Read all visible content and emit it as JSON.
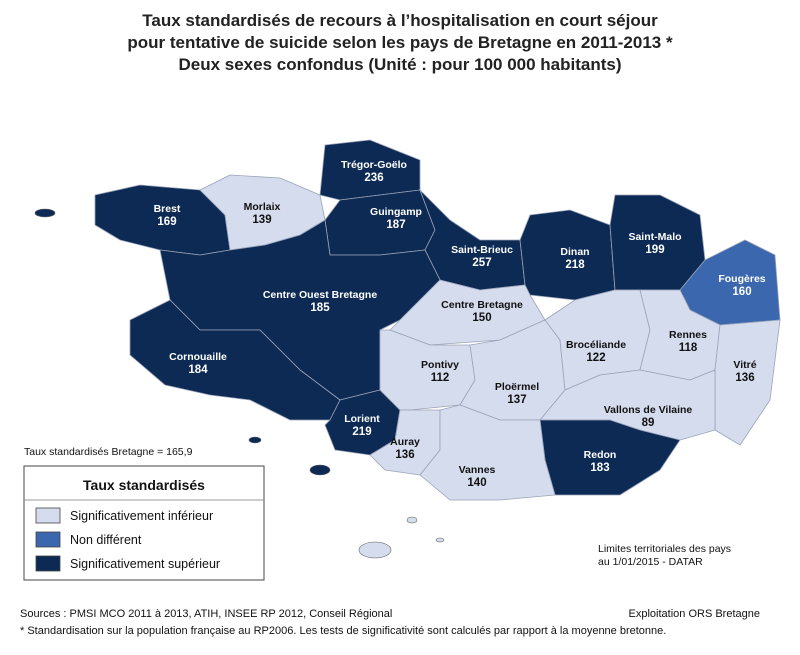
{
  "title": [
    "Taux standardisés de recours à l’hospitalisation en court séjour",
    "pour tentative de suicide selon les pays de Bretagne en 2011-2013 *",
    "Deux sexes confondus (Unité : pour 100 000 habitants)"
  ],
  "regions": [
    {
      "name": "Brest",
      "value": 169,
      "color": "#0d2a55"
    },
    {
      "name": "Morlaix",
      "value": 139,
      "color": "#d5dcee"
    },
    {
      "name": "Trégor-Goëlo",
      "value": 236,
      "color": "#0d2a55"
    },
    {
      "name": "Guingamp",
      "value": 187,
      "color": "#0d2a55"
    },
    {
      "name": "Saint-Brieuc",
      "value": 257,
      "color": "#0d2a55"
    },
    {
      "name": "Dinan",
      "value": 218,
      "color": "#0d2a55"
    },
    {
      "name": "Saint-Malo",
      "value": 199,
      "color": "#0d2a55"
    },
    {
      "name": "Fougères",
      "value": 160,
      "color": "#3a67ad"
    },
    {
      "name": "Centre Ouest Bretagne",
      "value": 185,
      "color": "#0d2a55"
    },
    {
      "name": "Centre Bretagne",
      "value": 150,
      "color": "#d5dcee"
    },
    {
      "name": "Cornouaille",
      "value": 184,
      "color": "#0d2a55"
    },
    {
      "name": "Lorient",
      "value": 219,
      "color": "#0d2a55"
    },
    {
      "name": "Pontivy",
      "value": 112,
      "color": "#d5dcee"
    },
    {
      "name": "Ploërmel",
      "value": 137,
      "color": "#d5dcee"
    },
    {
      "name": "Brocéliande",
      "value": 122,
      "color": "#d5dcee"
    },
    {
      "name": "Rennes",
      "value": 118,
      "color": "#d5dcee"
    },
    {
      "name": "Vitré",
      "value": 136,
      "color": "#d5dcee"
    },
    {
      "name": "Vallons de Vilaine",
      "value": 89,
      "color": "#d5dcee"
    },
    {
      "name": "Redon",
      "value": 183,
      "color": "#0d2a55"
    },
    {
      "name": "Auray",
      "value": 136,
      "color": "#d5dcee"
    },
    {
      "name": "Vannes",
      "value": 140,
      "color": "#d5dcee"
    }
  ],
  "average_note": "Taux standardisés Bretagne = 165,9",
  "legend": {
    "title": "Taux standardisés",
    "items": [
      {
        "label": "Significativement inférieur",
        "color": "#d5dcee"
      },
      {
        "label": "Non différent",
        "color": "#3a67ad"
      },
      {
        "label": "Significativement supérieur",
        "color": "#0d2a55"
      }
    ]
  },
  "limits_note": [
    "Limites territoriales des pays",
    "au 1/01/2015 - DATAR"
  ],
  "sources": "Sources : PMSI MCO 2011 à 2013, ATIH, INSEE RP 2012, Conseil Régional",
  "exploitation": "Exploitation ORS Bretagne",
  "footnote": "* Standardisation sur la population française au RP2006. Les tests de significativité sont calculés par rapport à la moyenne bretonne."
}
